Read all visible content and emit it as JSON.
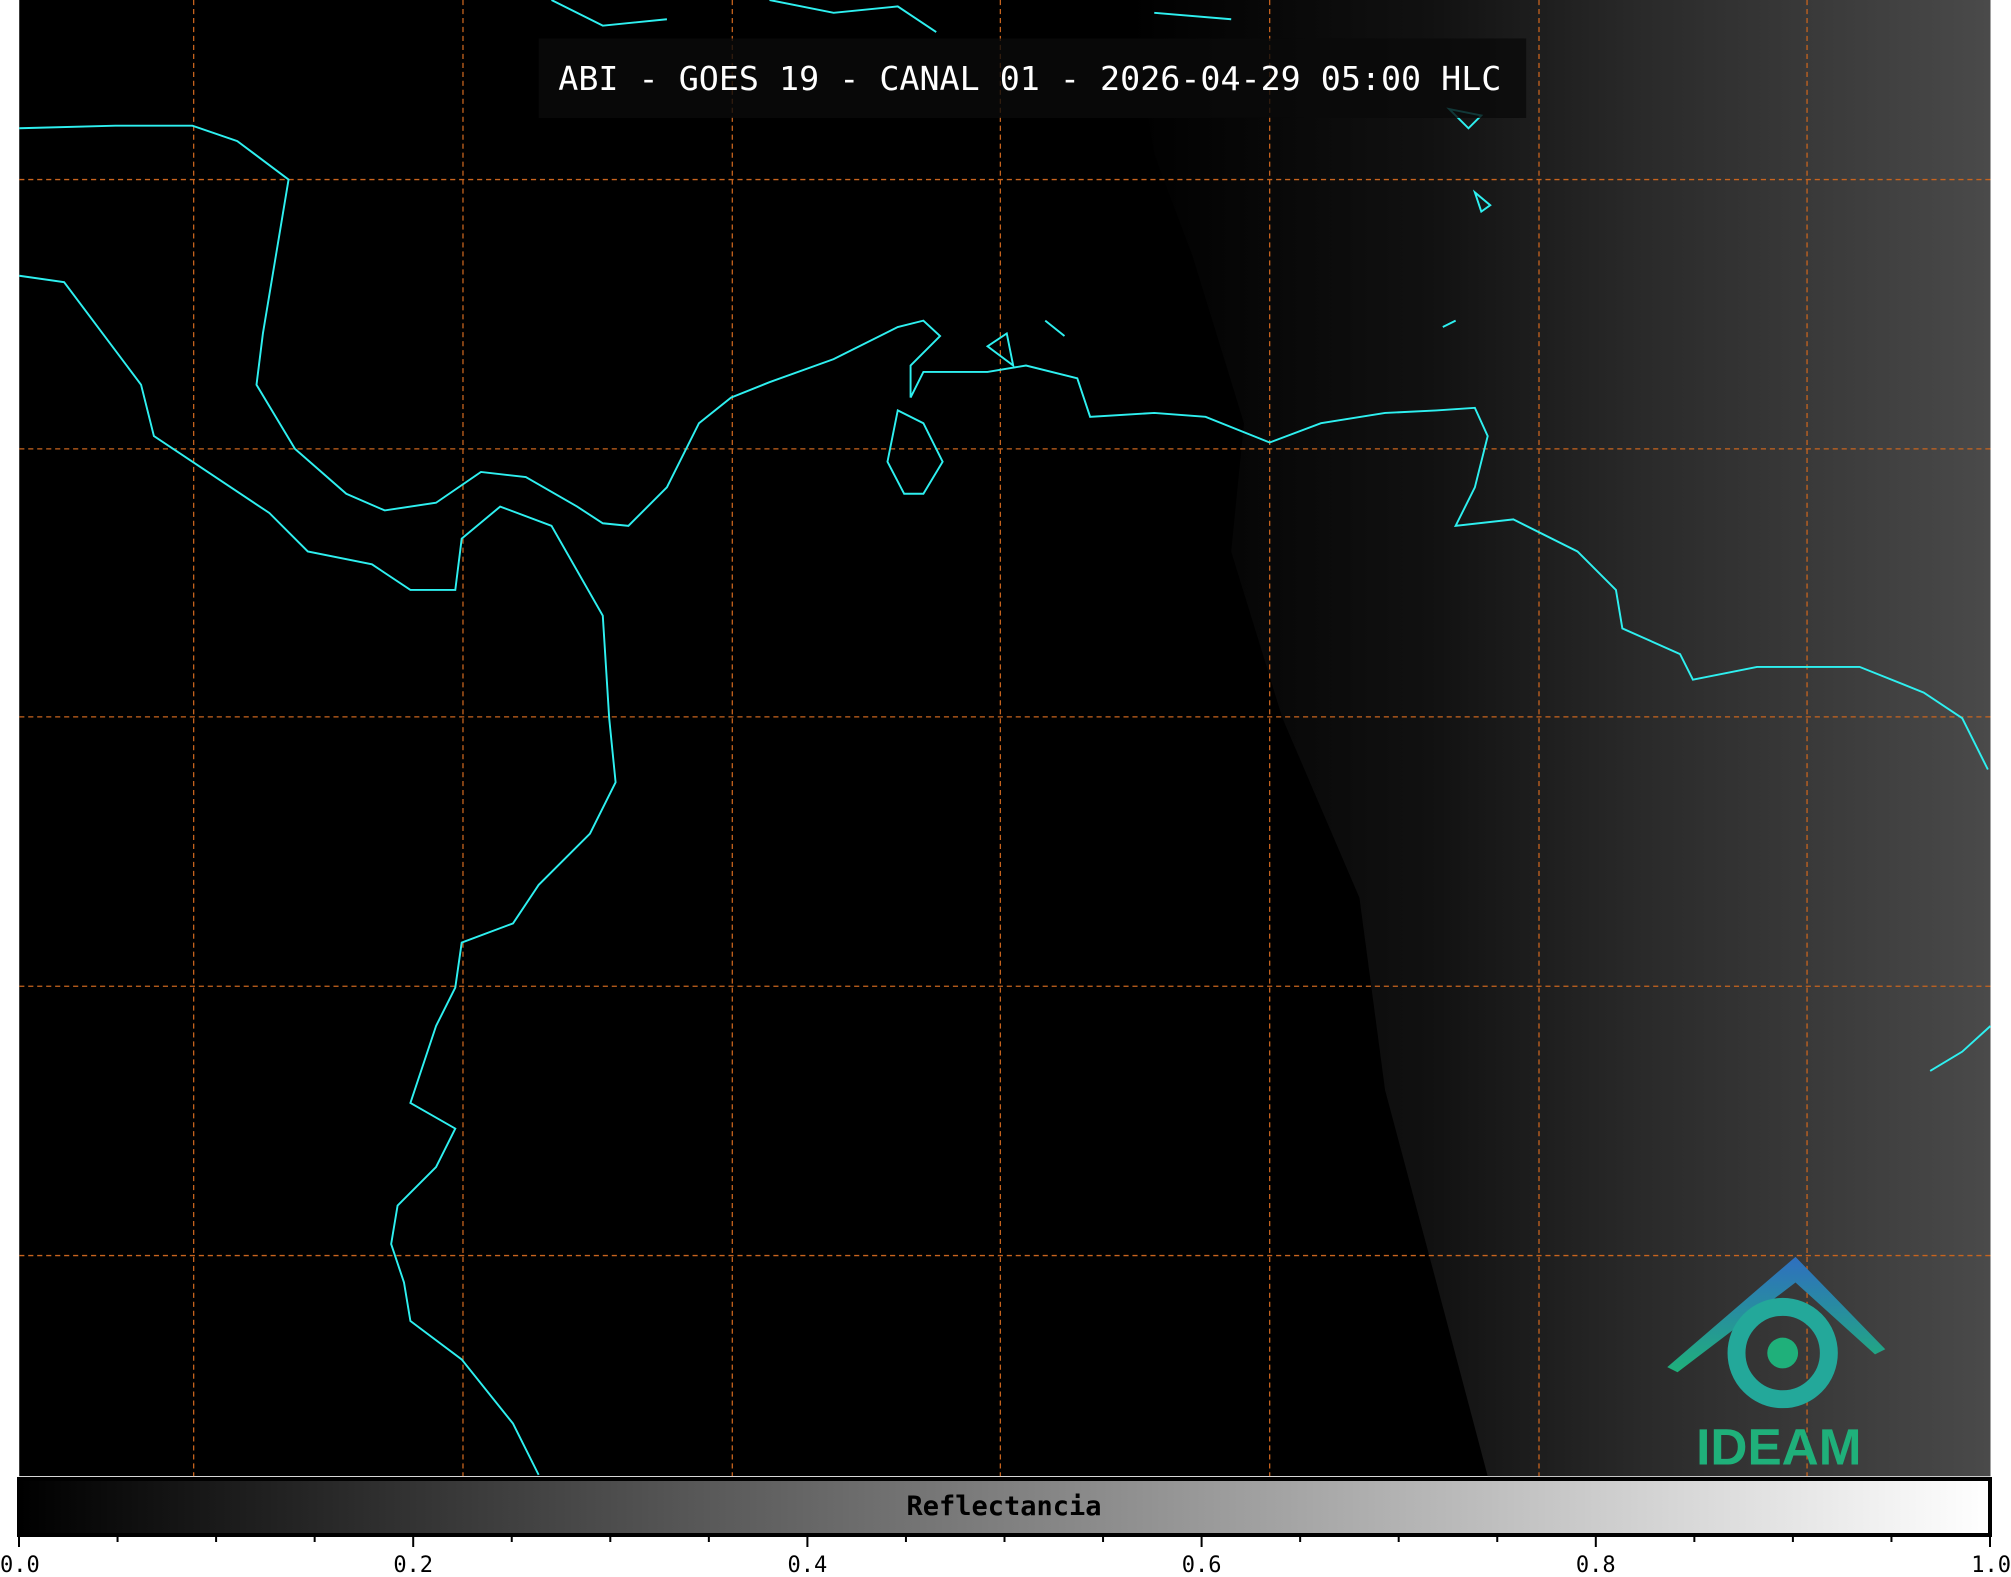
{
  "title": "ABI - GOES 19 - CANAL 01 - 2026-04-29 05:00 HLC",
  "logo": "IDEAM",
  "colorbar": {
    "label": "Reflectancia",
    "lim": [
      0,
      1
    ],
    "ticks": [
      {
        "value": 0,
        "label": "0.0"
      },
      {
        "value": 0.2,
        "label": "0.2"
      },
      {
        "value": 0.4,
        "label": "0.4"
      },
      {
        "value": 0.6,
        "label": "0.6"
      },
      {
        "value": 0.8,
        "label": "0.8"
      },
      {
        "value": 1,
        "label": "1.0"
      }
    ],
    "minor_ticks": [
      0.05,
      0.1,
      0.15,
      0.25,
      0.3,
      0.35,
      0.45,
      0.5,
      0.55,
      0.65,
      0.7,
      0.75,
      0.85,
      0.9,
      0.95
    ]
  }
}
